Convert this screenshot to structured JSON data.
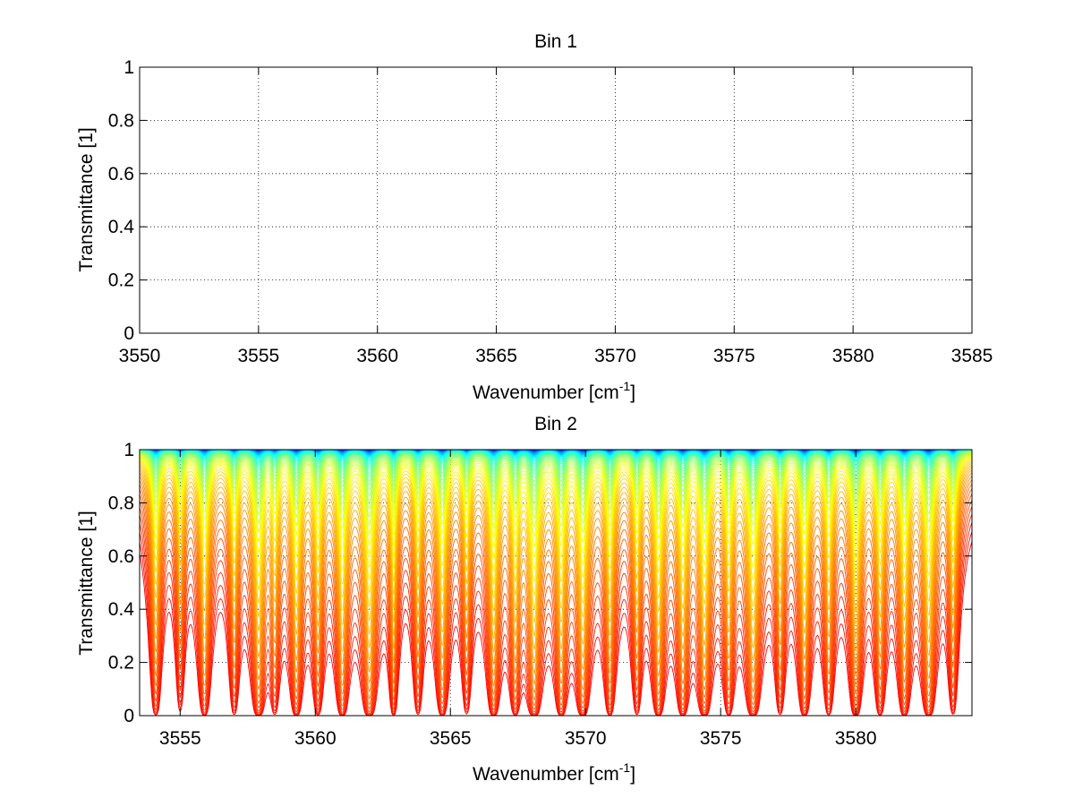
{
  "chart_data": [
    {
      "type": "line",
      "title": "Bin 1",
      "xlabel": "Wavenumber [cm",
      "xlabel_sup": "-1",
      "xlabel_tail": "]",
      "ylabel": "Transmittance [1]",
      "xlim": [
        3550,
        3585
      ],
      "ylim": [
        0,
        1
      ],
      "xticks": [
        3550,
        3555,
        3560,
        3565,
        3570,
        3575,
        3580,
        3585
      ],
      "xtick_labels": [
        "3550",
        "3555",
        "3560",
        "3565",
        "3570",
        "3575",
        "3580",
        "3585"
      ],
      "yticks": [
        0,
        0.2,
        0.4,
        0.6,
        0.8,
        1
      ],
      "ytick_labels": [
        "0",
        "0.2",
        "0.4",
        "0.6",
        "0.8",
        "1"
      ],
      "grid": true,
      "series": []
    },
    {
      "type": "line",
      "title": "Bin 2",
      "xlabel": "Wavenumber [cm",
      "xlabel_sup": "-1",
      "xlabel_tail": "]",
      "ylabel": "Transmittance [1]",
      "xlim": [
        3553.5,
        3584.3
      ],
      "ylim": [
        0,
        1
      ],
      "xticks": [
        3555,
        3560,
        3565,
        3570,
        3575,
        3580
      ],
      "xtick_labels": [
        "3555",
        "3560",
        "3565",
        "3570",
        "3575",
        "3580"
      ],
      "yticks": [
        0,
        0.2,
        0.4,
        0.6,
        0.8,
        1
      ],
      "ytick_labels": [
        "0",
        "0.2",
        "0.4",
        "0.6",
        "0.8",
        "1"
      ],
      "grid": true,
      "colormap": [
        "#00008f",
        "#0060ff",
        "#00ffff",
        "#80ff80",
        "#ffff00",
        "#ff8000",
        "#ff0000"
      ],
      "curve_count": 60,
      "absorption_lines": [
        {
          "x": 3554.1,
          "depth": 0.7,
          "width": 0.13
        },
        {
          "x": 3555.0,
          "depth": 0.45,
          "width": 0.12
        },
        {
          "x": 3555.9,
          "depth": 0.8,
          "width": 0.14
        },
        {
          "x": 3557.0,
          "depth": 0.6,
          "width": 0.12
        },
        {
          "x": 3557.9,
          "depth": 0.95,
          "width": 0.15
        },
        {
          "x": 3558.5,
          "depth": 0.55,
          "width": 0.12
        },
        {
          "x": 3559.3,
          "depth": 0.85,
          "width": 0.14
        },
        {
          "x": 3560.1,
          "depth": 0.65,
          "width": 0.13
        },
        {
          "x": 3561.0,
          "depth": 0.9,
          "width": 0.14
        },
        {
          "x": 3562.0,
          "depth": 1.0,
          "width": 0.16
        },
        {
          "x": 3562.9,
          "depth": 0.75,
          "width": 0.1
        },
        {
          "x": 3563.8,
          "depth": 0.6,
          "width": 0.12
        },
        {
          "x": 3564.7,
          "depth": 0.85,
          "width": 0.14
        },
        {
          "x": 3565.6,
          "depth": 0.55,
          "width": 0.12
        },
        {
          "x": 3566.6,
          "depth": 0.9,
          "width": 0.14
        },
        {
          "x": 3567.4,
          "depth": 0.7,
          "width": 0.13
        },
        {
          "x": 3568.1,
          "depth": 1.0,
          "width": 0.16
        },
        {
          "x": 3569.1,
          "depth": 0.85,
          "width": 0.14
        },
        {
          "x": 3569.9,
          "depth": 0.95,
          "width": 0.15
        },
        {
          "x": 3570.9,
          "depth": 0.75,
          "width": 0.13
        },
        {
          "x": 3571.9,
          "depth": 0.6,
          "width": 0.12
        },
        {
          "x": 3572.7,
          "depth": 0.9,
          "width": 0.14
        },
        {
          "x": 3573.6,
          "depth": 0.85,
          "width": 0.14
        },
        {
          "x": 3574.4,
          "depth": 0.95,
          "width": 0.15
        },
        {
          "x": 3575.3,
          "depth": 0.7,
          "width": 0.13
        },
        {
          "x": 3576.2,
          "depth": 1.0,
          "width": 0.16
        },
        {
          "x": 3577.2,
          "depth": 0.6,
          "width": 0.12
        },
        {
          "x": 3578.1,
          "depth": 0.85,
          "width": 0.14
        },
        {
          "x": 3579.0,
          "depth": 0.65,
          "width": 0.13
        },
        {
          "x": 3580.0,
          "depth": 0.9,
          "width": 0.14
        },
        {
          "x": 3580.9,
          "depth": 0.7,
          "width": 0.13
        },
        {
          "x": 3581.8,
          "depth": 0.85,
          "width": 0.14
        },
        {
          "x": 3582.7,
          "depth": 0.95,
          "width": 0.15
        },
        {
          "x": 3583.6,
          "depth": 0.6,
          "width": 0.12
        }
      ]
    }
  ]
}
